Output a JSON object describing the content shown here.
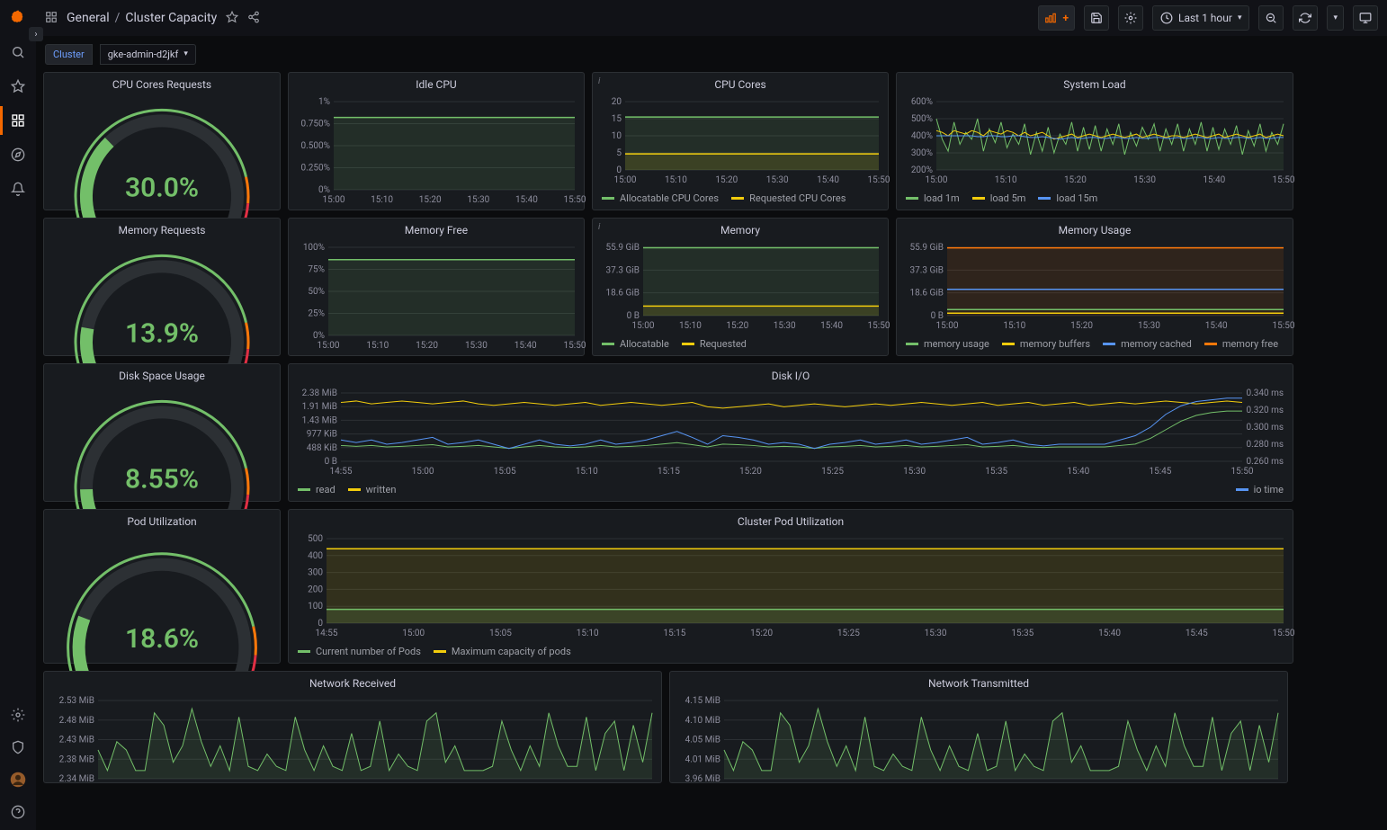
{
  "colors": {
    "bg": "#0b0c0e",
    "panel": "#181b1f",
    "border": "#2c3034",
    "text": "#ccccdc",
    "subtext": "#8e8e9e",
    "green": "#73bf69",
    "yellow": "#f2cc0c",
    "orange": "#ff780a",
    "red": "#e02f44",
    "blue": "#5794f2",
    "darkgreen_fill": "#2a3a24"
  },
  "header": {
    "folder": "General",
    "title": "Cluster Capacity",
    "timerange": "Last 1 hour"
  },
  "variable": {
    "label": "Cluster",
    "value": "gke-admin-d2jkf"
  },
  "time_ticks_short": [
    "15:00",
    "15:10",
    "15:20",
    "15:30",
    "15:40",
    "15:50"
  ],
  "time_ticks_long": [
    "14:55",
    "15:00",
    "15:05",
    "15:10",
    "15:15",
    "15:20",
    "15:25",
    "15:30",
    "15:35",
    "15:40",
    "15:45",
    "15:50"
  ],
  "gauges": {
    "cpu": {
      "title": "CPU Cores Requests",
      "value": 30.0,
      "display": "30.0%"
    },
    "memory": {
      "title": "Memory Requests",
      "value": 13.9,
      "display": "13.9%"
    },
    "disk": {
      "title": "Disk Space Usage",
      "value": 8.55,
      "display": "8.55%"
    },
    "pod": {
      "title": "Pod Utilization",
      "value": 18.6,
      "display": "18.6%"
    }
  },
  "idle_cpu": {
    "title": "Idle CPU",
    "yticks": [
      "0%",
      "0.250%",
      "0.500%",
      "0.750%",
      "1%"
    ],
    "ylim": [
      0,
      1
    ],
    "value_flat": 0.82
  },
  "cpu_cores": {
    "title": "CPU Cores",
    "yticks": [
      "0",
      "5",
      "10",
      "15",
      "20"
    ],
    "ylim": [
      0,
      20
    ],
    "allocatable": 15.5,
    "requested": 4.7,
    "legend": [
      {
        "label": "Allocatable CPU Cores",
        "color": "#73bf69"
      },
      {
        "label": "Requested CPU Cores",
        "color": "#f2cc0c"
      }
    ]
  },
  "system_load": {
    "title": "System Load",
    "yticks": [
      "200%",
      "300%",
      "400%",
      "500%",
      "600%"
    ],
    "ylim": [
      200,
      600
    ],
    "series": {
      "load1m": [
        500,
        380,
        310,
        480,
        350,
        420,
        380,
        500,
        310,
        440,
        360,
        480,
        330,
        410,
        350,
        470,
        290,
        420,
        310,
        450,
        300,
        410,
        350,
        480,
        310,
        450,
        320,
        460,
        310,
        440,
        350,
        470,
        290,
        420,
        340,
        450,
        380,
        470,
        310,
        440,
        350,
        470,
        310,
        440,
        350,
        480,
        310,
        450,
        320,
        440,
        350,
        460,
        290,
        430,
        340,
        470,
        310,
        420,
        350,
        470
      ],
      "load5m": [
        430,
        420,
        400,
        430,
        420,
        410,
        430,
        420,
        400,
        430,
        420,
        410,
        430,
        420,
        400,
        420,
        400,
        410,
        420,
        400,
        380,
        390,
        400,
        410,
        390,
        400,
        410,
        400,
        390,
        400,
        410,
        400,
        390,
        400,
        410,
        390,
        400,
        410,
        400,
        390,
        400,
        400,
        390,
        400,
        410,
        400,
        390,
        400,
        410,
        390,
        400,
        410,
        400,
        390,
        400,
        410,
        390,
        400,
        410,
        400
      ],
      "load15m": [
        400,
        400,
        400,
        400,
        400,
        400,
        400,
        395,
        395,
        400,
        400,
        395,
        395,
        400,
        400,
        395,
        390,
        390,
        395,
        390,
        385,
        380,
        385,
        390,
        385,
        385,
        390,
        390,
        385,
        385,
        390,
        390,
        385,
        385,
        390,
        385,
        385,
        390,
        390,
        385,
        385,
        390,
        385,
        385,
        390,
        390,
        385,
        385,
        390,
        385,
        385,
        390,
        390,
        385,
        385,
        390,
        385,
        385,
        390,
        390
      ]
    },
    "legend": [
      {
        "label": "load 1m",
        "color": "#73bf69"
      },
      {
        "label": "load 5m",
        "color": "#f2cc0c"
      },
      {
        "label": "load 15m",
        "color": "#5794f2"
      }
    ]
  },
  "memory_free": {
    "title": "Memory Free",
    "yticks": [
      "0%",
      "25%",
      "50%",
      "75%",
      "100%"
    ],
    "ylim": [
      0,
      100
    ],
    "value_flat": 86
  },
  "memory_panel": {
    "title": "Memory",
    "yticks": [
      "0 B",
      "18.6 GiB",
      "37.3 GiB",
      "55.9 GiB"
    ],
    "ylim": [
      0,
      55.9
    ],
    "allocatable": 55.5,
    "requested": 7.8,
    "legend": [
      {
        "label": "Allocatable",
        "color": "#73bf69"
      },
      {
        "label": "Requested",
        "color": "#f2cc0c"
      }
    ]
  },
  "memory_usage": {
    "title": "Memory Usage",
    "yticks": [
      "0 B",
      "18.6 GiB",
      "37.3 GiB",
      "55.9 GiB"
    ],
    "ylim": [
      0,
      55.9
    ],
    "series": {
      "usage": 5.0,
      "buffers": 2.0,
      "cached": 21.5,
      "free": 55.4
    },
    "legend": [
      {
        "label": "memory usage",
        "color": "#73bf69"
      },
      {
        "label": "memory buffers",
        "color": "#f2cc0c"
      },
      {
        "label": "memory cached",
        "color": "#5794f2"
      },
      {
        "label": "memory free",
        "color": "#ff780a"
      }
    ]
  },
  "disk_io": {
    "title": "Disk I/O",
    "yticks_left": [
      "0 B",
      "488 KiB",
      "977 KiB",
      "1.43 MiB",
      "1.91 MiB",
      "2.38 MiB"
    ],
    "yticks_right": [
      "0.260 ms",
      "0.280 ms",
      "0.300 ms",
      "0.320 ms",
      "0.340 ms"
    ],
    "ylim_left": [
      0,
      2.38
    ],
    "series": {
      "read": [
        0.55,
        0.52,
        0.55,
        0.5,
        0.52,
        0.55,
        0.58,
        0.5,
        0.52,
        0.55,
        0.5,
        0.45,
        0.5,
        0.55,
        0.5,
        0.48,
        0.5,
        0.55,
        0.5,
        0.52,
        0.55,
        0.6,
        0.65,
        0.58,
        0.5,
        0.6,
        0.58,
        0.55,
        0.5,
        0.52,
        0.5,
        0.45,
        0.5,
        0.52,
        0.55,
        0.5,
        0.52,
        0.55,
        0.5,
        0.52,
        0.55,
        0.58,
        0.5,
        0.52,
        0.55,
        0.5,
        0.48,
        0.5,
        0.5,
        0.5,
        0.5,
        0.55,
        0.6,
        0.8,
        1.1,
        1.4,
        1.6,
        1.7,
        1.75,
        1.75
      ],
      "written": [
        2.05,
        2.1,
        2.0,
        2.05,
        2.1,
        2.05,
        2.0,
        2.05,
        2.1,
        2.0,
        1.95,
        2.0,
        2.05,
        2.0,
        1.95,
        2.0,
        2.05,
        1.95,
        2.0,
        2.05,
        2.0,
        1.95,
        2.0,
        2.05,
        1.9,
        1.85,
        1.9,
        1.95,
        2.0,
        1.9,
        1.95,
        2.0,
        1.95,
        1.9,
        1.95,
        2.0,
        1.95,
        2.0,
        2.05,
        2.0,
        1.95,
        2.0,
        2.05,
        1.95,
        2.0,
        2.05,
        1.95,
        2.0,
        2.05,
        1.95,
        2.0,
        2.05,
        2.0,
        2.05,
        2.1,
        2.05,
        2.0,
        2.05,
        2.1,
        2.05
      ],
      "iotime": [
        0.285,
        0.282,
        0.285,
        0.28,
        0.282,
        0.285,
        0.288,
        0.28,
        0.282,
        0.285,
        0.28,
        0.275,
        0.28,
        0.285,
        0.28,
        0.278,
        0.28,
        0.285,
        0.28,
        0.282,
        0.285,
        0.29,
        0.295,
        0.288,
        0.28,
        0.29,
        0.288,
        0.285,
        0.28,
        0.282,
        0.28,
        0.275,
        0.28,
        0.282,
        0.285,
        0.28,
        0.282,
        0.285,
        0.28,
        0.282,
        0.285,
        0.288,
        0.28,
        0.282,
        0.285,
        0.28,
        0.278,
        0.28,
        0.28,
        0.28,
        0.28,
        0.285,
        0.29,
        0.3,
        0.315,
        0.325,
        0.33,
        0.332,
        0.334,
        0.334
      ]
    },
    "legend_left": [
      {
        "label": "read",
        "color": "#73bf69"
      },
      {
        "label": "written",
        "color": "#f2cc0c"
      }
    ],
    "legend_right": [
      {
        "label": "io time",
        "color": "#5794f2"
      }
    ]
  },
  "pod_util": {
    "title": "Cluster Pod Utilization",
    "yticks": [
      "0",
      "100",
      "200",
      "300",
      "400",
      "500"
    ],
    "ylim": [
      0,
      500
    ],
    "current": 82,
    "max": 440,
    "legend": [
      {
        "label": "Current number of Pods",
        "color": "#73bf69"
      },
      {
        "label": "Maximum capacity of pods",
        "color": "#f2cc0c"
      }
    ]
  },
  "net_rx": {
    "title": "Network Received",
    "yticks": [
      "2.34 MiB",
      "2.38 MiB",
      "2.43 MiB",
      "2.48 MiB",
      "2.53 MiB"
    ],
    "ylim": [
      2.34,
      2.53
    ],
    "series": [
      2.41,
      2.36,
      2.43,
      2.41,
      2.36,
      2.36,
      2.5,
      2.47,
      2.38,
      2.42,
      2.51,
      2.43,
      2.37,
      2.42,
      2.36,
      2.49,
      2.37,
      2.36,
      2.4,
      2.37,
      2.36,
      2.49,
      2.41,
      2.36,
      2.42,
      2.37,
      2.36,
      2.45,
      2.36,
      2.37,
      2.48,
      2.36,
      2.4,
      2.37,
      2.36,
      2.48,
      2.5,
      2.38,
      2.42,
      2.36,
      2.36,
      2.36,
      2.37,
      2.48,
      2.41,
      2.36,
      2.42,
      2.37,
      2.5,
      2.42,
      2.37,
      2.37,
      2.49,
      2.36,
      2.45,
      2.48,
      2.36,
      2.47,
      2.38,
      2.5
    ]
  },
  "net_tx": {
    "title": "Network Transmitted",
    "yticks": [
      "3.96 MiB",
      "4.01 MiB",
      "4.05 MiB",
      "4.10 MiB",
      "4.15 MiB"
    ],
    "ylim": [
      3.96,
      4.15
    ],
    "series": [
      4.03,
      3.98,
      4.05,
      4.03,
      3.98,
      3.98,
      4.12,
      4.09,
      4.0,
      4.04,
      4.13,
      4.05,
      3.99,
      4.04,
      3.98,
      4.11,
      3.99,
      3.98,
      4.02,
      3.99,
      3.98,
      4.11,
      4.03,
      3.98,
      4.04,
      3.99,
      3.98,
      4.07,
      3.98,
      3.99,
      4.1,
      3.98,
      4.02,
      3.99,
      3.98,
      4.1,
      4.12,
      4.0,
      4.04,
      3.98,
      3.98,
      3.98,
      3.99,
      4.1,
      4.03,
      3.98,
      4.04,
      3.99,
      4.12,
      4.04,
      3.99,
      3.99,
      4.11,
      3.98,
      4.07,
      4.1,
      3.98,
      4.09,
      4.0,
      4.12
    ]
  }
}
